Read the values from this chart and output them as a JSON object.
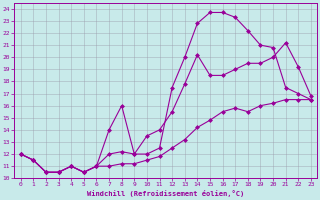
{
  "xlabel": "Windchill (Refroidissement éolien,°C)",
  "xlim": [
    -0.5,
    23.5
  ],
  "ylim": [
    10,
    24.5
  ],
  "xticks": [
    0,
    1,
    2,
    3,
    4,
    5,
    6,
    7,
    8,
    9,
    10,
    11,
    12,
    13,
    14,
    15,
    16,
    17,
    18,
    19,
    20,
    21,
    22,
    23
  ],
  "yticks": [
    10,
    11,
    12,
    13,
    14,
    15,
    16,
    17,
    18,
    19,
    20,
    21,
    22,
    23,
    24
  ],
  "bg_color": "#c8eaea",
  "grid_color": "#9999aa",
  "line_color": "#990099",
  "markersize": 2.5,
  "curve_top_x": [
    0,
    1,
    2,
    3,
    4,
    5,
    6,
    7,
    8,
    9,
    10,
    11,
    12,
    13,
    14,
    15,
    16,
    17,
    18,
    19,
    20,
    21,
    22,
    23
  ],
  "curve_top_y": [
    12,
    11.5,
    10.5,
    10.5,
    11,
    10.5,
    11,
    12,
    12.2,
    12,
    12,
    12.5,
    17.5,
    20.0,
    22.8,
    23.7,
    23.7,
    23.3,
    22.2,
    21.0,
    20.8,
    17.5,
    17.0,
    16.5
  ],
  "curve_mid_x": [
    0,
    1,
    2,
    3,
    4,
    5,
    6,
    7,
    8,
    9,
    10,
    11,
    12,
    13,
    14,
    15,
    16,
    17,
    18,
    19,
    20,
    21,
    22,
    23
  ],
  "curve_mid_y": [
    12,
    11.5,
    10.5,
    10.5,
    11,
    10.5,
    11,
    14,
    16.0,
    12,
    13.5,
    14.0,
    15.5,
    17.8,
    20.2,
    18.5,
    18.5,
    19.0,
    19.5,
    19.5,
    20.0,
    21.2,
    19.2,
    16.8
  ],
  "curve_low_x": [
    0,
    1,
    2,
    3,
    4,
    5,
    6,
    7,
    8,
    9,
    10,
    11,
    12,
    13,
    14,
    15,
    16,
    17,
    18,
    19,
    20,
    21,
    22,
    23
  ],
  "curve_low_y": [
    12,
    11.5,
    10.5,
    10.5,
    11,
    10.5,
    11,
    11.0,
    11.2,
    11.2,
    11.5,
    11.8,
    12.5,
    13.2,
    14.2,
    14.8,
    15.5,
    15.8,
    15.5,
    16.0,
    16.2,
    16.5,
    16.5,
    16.5
  ]
}
